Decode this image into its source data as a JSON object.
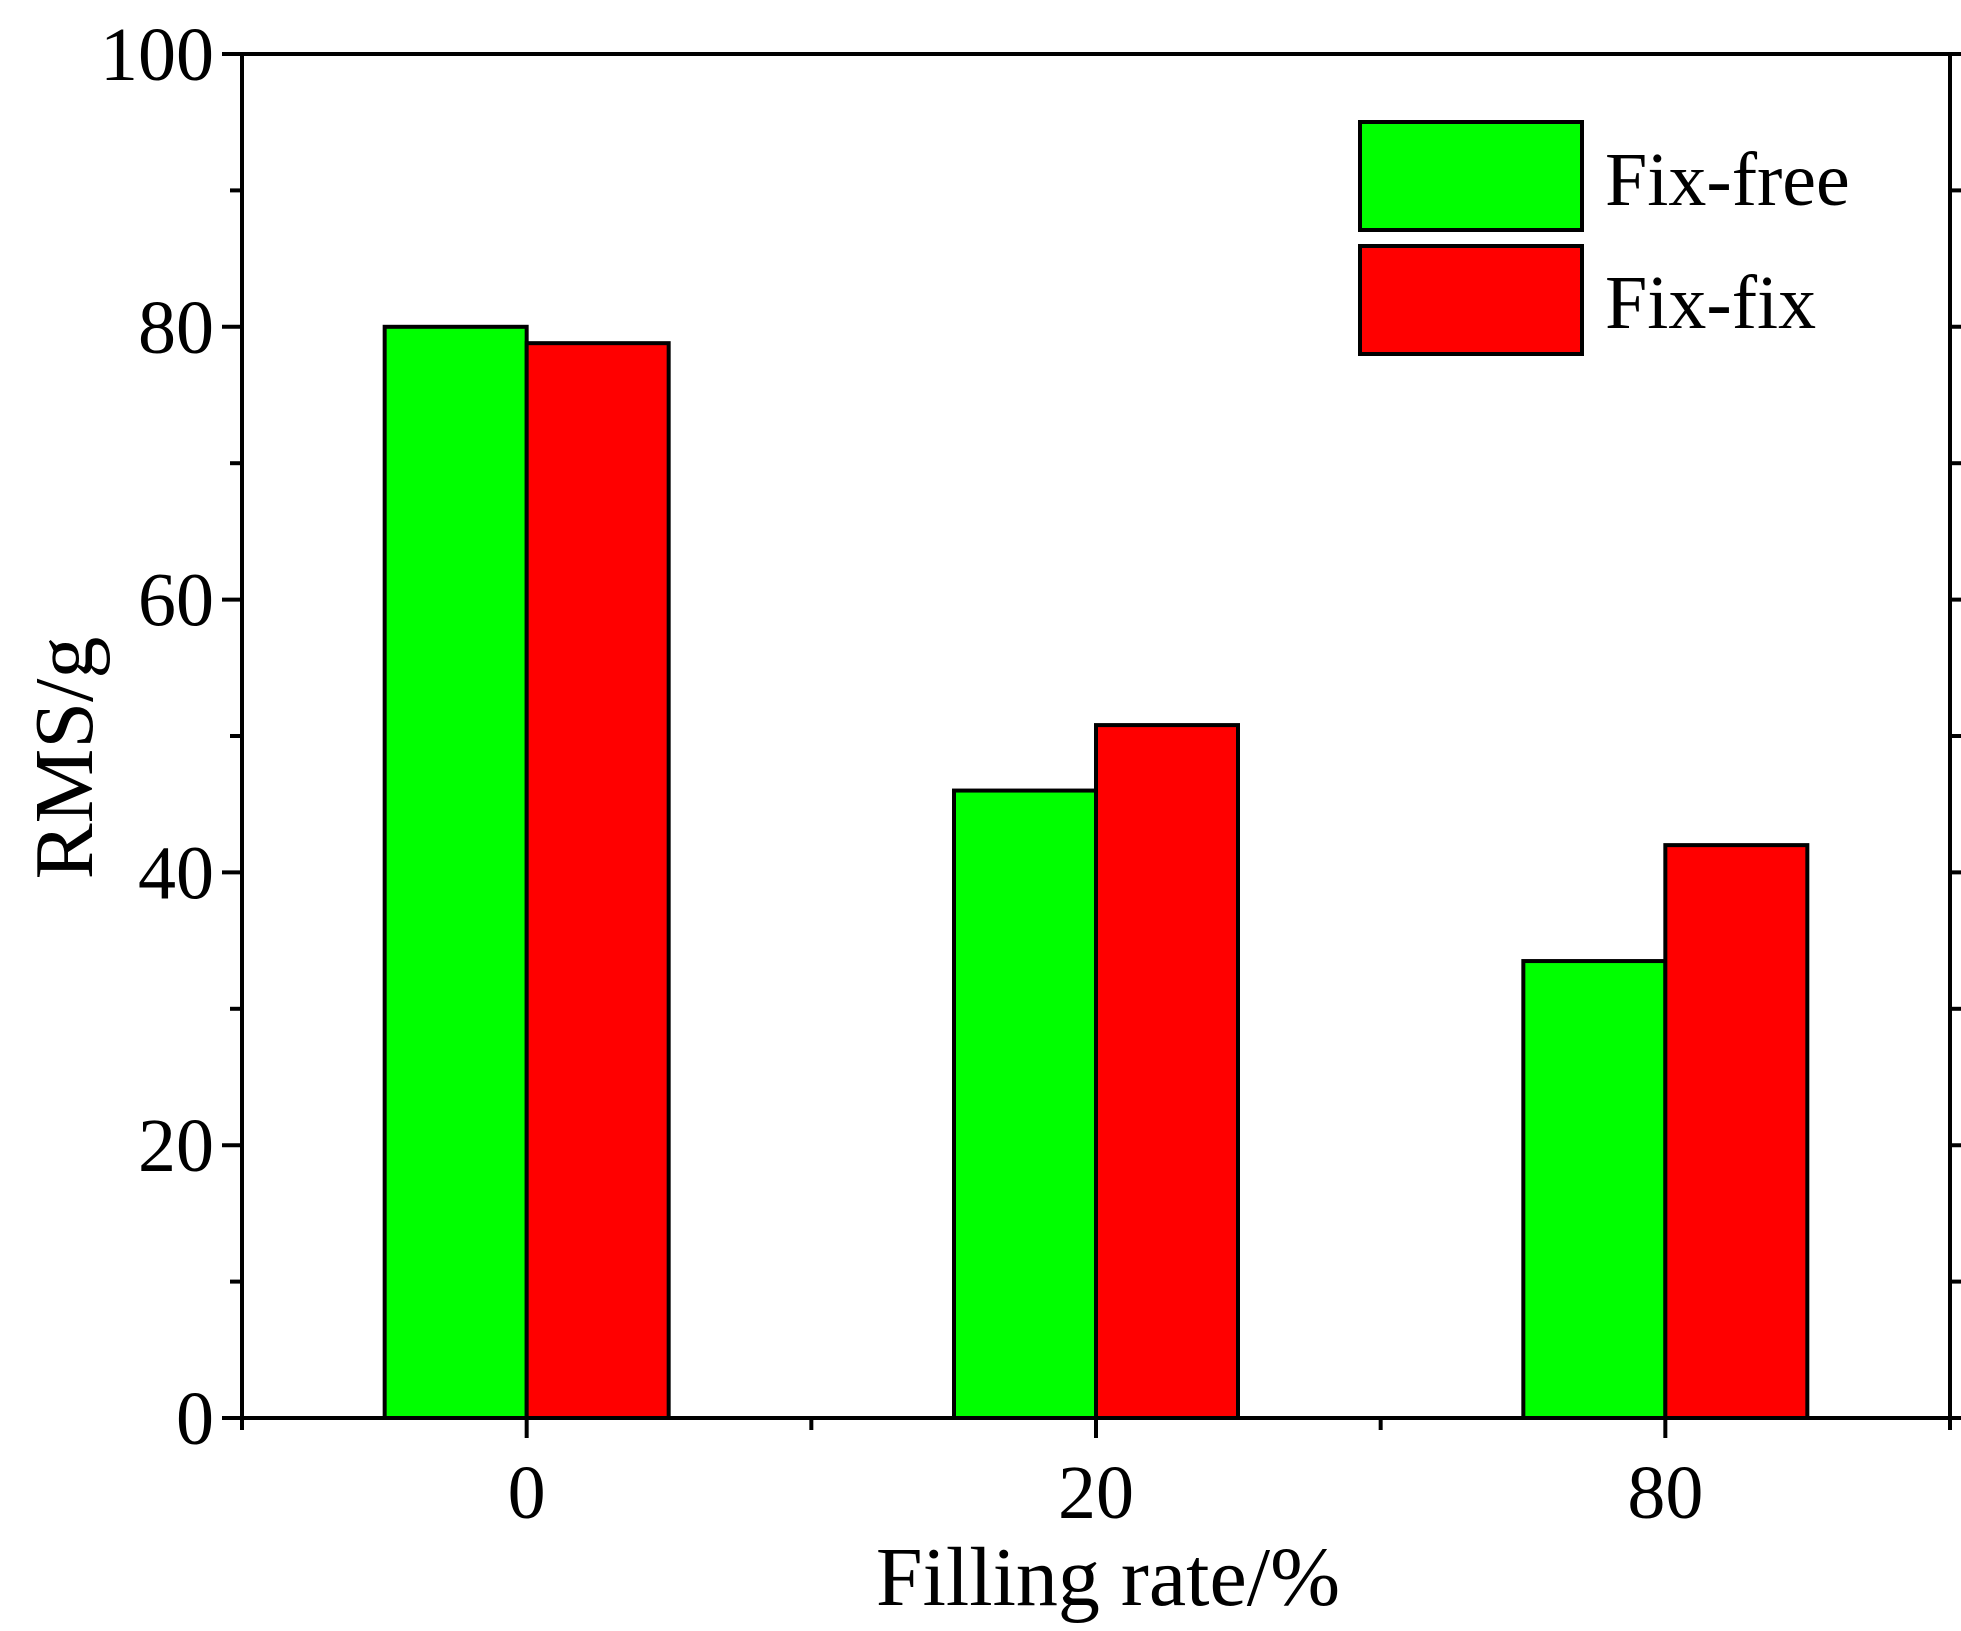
{
  "chart_data": {
    "type": "bar",
    "title": "",
    "xlabel": "Filling rate/%",
    "ylabel": "RMS/g",
    "categories": [
      "0",
      "20",
      "80"
    ],
    "ylim": [
      0,
      100
    ],
    "yticks": [
      "0",
      "20",
      "40",
      "60",
      "80",
      "100"
    ],
    "grid": false,
    "legend_position": "top-right",
    "series": [
      {
        "name": "Fix-free",
        "color": "#00ff00",
        "values": [
          80,
          46,
          33.5
        ]
      },
      {
        "name": "Fix-fix",
        "color": "#ff0000",
        "values": [
          78.8,
          50.8,
          42
        ]
      }
    ]
  }
}
